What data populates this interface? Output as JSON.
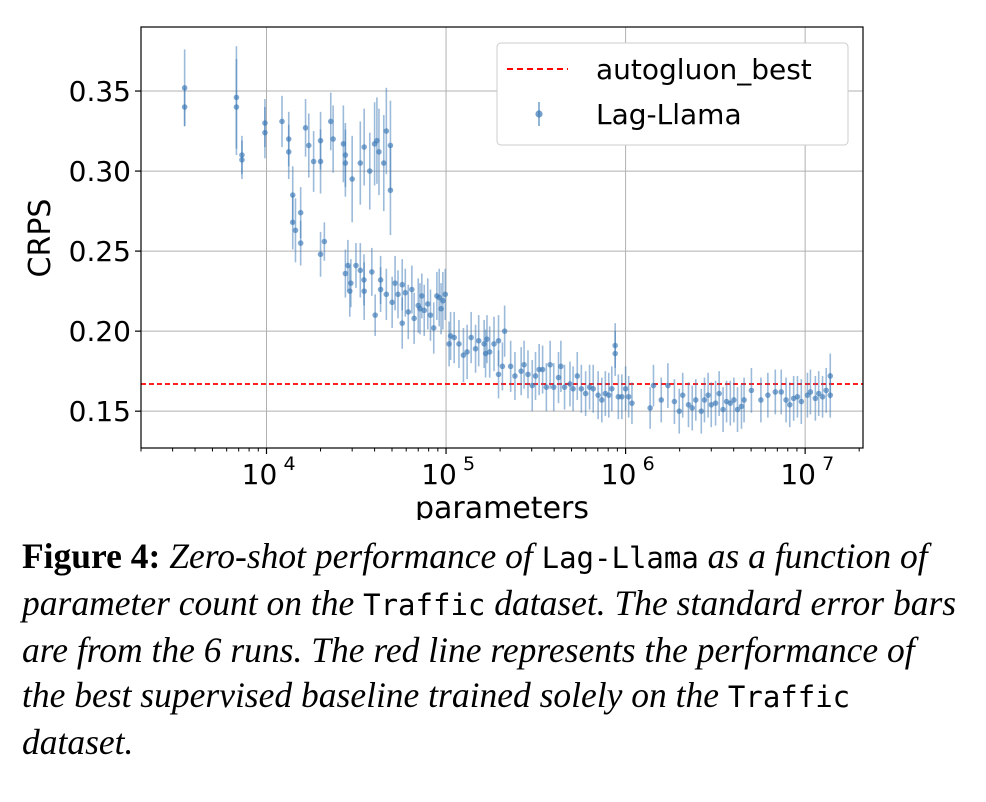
{
  "chart_data": {
    "type": "scatter",
    "xscale": "log",
    "xlim": [
      2000,
      21000000
    ],
    "ylim": [
      0.127,
      0.39
    ],
    "xlabel": "parameters",
    "ylabel": "CRPS",
    "xticks": [
      {
        "value": 10000,
        "label": "10",
        "exp": "4"
      },
      {
        "value": 100000,
        "label": "10",
        "exp": "5"
      },
      {
        "value": 1000000,
        "label": "10",
        "exp": "6"
      },
      {
        "value": 10000000,
        "label": "10",
        "exp": "7"
      }
    ],
    "yticks": [
      {
        "value": 0.15,
        "label": "0.15"
      },
      {
        "value": 0.2,
        "label": "0.20"
      },
      {
        "value": 0.25,
        "label": "0.25"
      },
      {
        "value": 0.3,
        "label": "0.30"
      },
      {
        "value": 0.35,
        "label": "0.35"
      }
    ],
    "grid": true,
    "legend": {
      "position": "top-right",
      "entries": [
        "autogluon_best",
        "Lag-Llama"
      ]
    },
    "colors": {
      "points": "#3a78b5",
      "baseline": "#ff0000"
    },
    "baseline": {
      "name": "autogluon_best",
      "value": 0.167
    },
    "series": [
      {
        "name": "Lag-Llama",
        "points": [
          [
            3500,
            0.352,
            0.024
          ],
          [
            3500,
            0.34,
            0.012
          ],
          [
            6800,
            0.346,
            0.032
          ],
          [
            6800,
            0.34,
            0.03
          ],
          [
            7300,
            0.31,
            0.012
          ],
          [
            7300,
            0.307,
            0.012
          ],
          [
            9800,
            0.33,
            0.015
          ],
          [
            9800,
            0.324,
            0.016
          ],
          [
            12200,
            0.331,
            0.016
          ],
          [
            13300,
            0.32,
            0.017
          ],
          [
            13300,
            0.312,
            0.017
          ],
          [
            14000,
            0.285,
            0.018
          ],
          [
            14000,
            0.268,
            0.017
          ],
          [
            14500,
            0.263,
            0.02
          ],
          [
            15500,
            0.274,
            0.016
          ],
          [
            15500,
            0.255,
            0.014
          ],
          [
            16500,
            0.327,
            0.018
          ],
          [
            17200,
            0.316,
            0.02
          ],
          [
            18300,
            0.306,
            0.019
          ],
          [
            20000,
            0.319,
            0.018
          ],
          [
            20000,
            0.306,
            0.02
          ],
          [
            20000,
            0.248,
            0.014
          ],
          [
            21000,
            0.256,
            0.012
          ],
          [
            22800,
            0.331,
            0.018
          ],
          [
            23500,
            0.32,
            0.021
          ],
          [
            26800,
            0.317,
            0.024
          ],
          [
            27500,
            0.305,
            0.021
          ],
          [
            27500,
            0.31,
            0.02
          ],
          [
            27500,
            0.236,
            0.015
          ],
          [
            28400,
            0.241,
            0.016
          ],
          [
            29100,
            0.225,
            0.016
          ],
          [
            29500,
            0.23,
            0.015
          ],
          [
            30000,
            0.295,
            0.027
          ],
          [
            31500,
            0.241,
            0.014
          ],
          [
            33300,
            0.305,
            0.026
          ],
          [
            33300,
            0.238,
            0.017
          ],
          [
            34900,
            0.232,
            0.016
          ],
          [
            35000,
            0.315,
            0.024
          ],
          [
            35000,
            0.225,
            0.018
          ],
          [
            37600,
            0.3,
            0.024
          ],
          [
            38600,
            0.237,
            0.015
          ],
          [
            40000,
            0.317,
            0.026
          ],
          [
            40300,
            0.21,
            0.013
          ],
          [
            41200,
            0.319,
            0.027
          ],
          [
            42300,
            0.312,
            0.027
          ],
          [
            43200,
            0.232,
            0.015
          ],
          [
            43200,
            0.226,
            0.014
          ],
          [
            45000,
            0.305,
            0.03
          ],
          [
            46500,
            0.325,
            0.027
          ],
          [
            46500,
            0.223,
            0.016
          ],
          [
            49000,
            0.288,
            0.028
          ],
          [
            49000,
            0.316,
            0.028
          ],
          [
            50100,
            0.218,
            0.016
          ],
          [
            52000,
            0.23,
            0.017
          ],
          [
            54000,
            0.223,
            0.015
          ],
          [
            57000,
            0.205,
            0.016
          ],
          [
            57000,
            0.229,
            0.016
          ],
          [
            59300,
            0.224,
            0.015
          ],
          [
            61600,
            0.212,
            0.017
          ],
          [
            64500,
            0.226,
            0.015
          ],
          [
            66400,
            0.208,
            0.016
          ],
          [
            70000,
            0.216,
            0.017
          ],
          [
            71600,
            0.214,
            0.016
          ],
          [
            73300,
            0.222,
            0.014
          ],
          [
            75600,
            0.213,
            0.016
          ],
          [
            79100,
            0.217,
            0.016
          ],
          [
            81900,
            0.21,
            0.016
          ],
          [
            85400,
            0.202,
            0.016
          ],
          [
            88900,
            0.222,
            0.015
          ],
          [
            91600,
            0.221,
            0.018
          ],
          [
            93800,
            0.214,
            0.016
          ],
          [
            96000,
            0.219,
            0.018
          ],
          [
            99000,
            0.223,
            0.016
          ],
          [
            104000,
            0.192,
            0.014
          ],
          [
            106000,
            0.197,
            0.015
          ],
          [
            111000,
            0.196,
            0.016
          ],
          [
            118000,
            0.192,
            0.015
          ],
          [
            125000,
            0.185,
            0.017
          ],
          [
            131000,
            0.187,
            0.017
          ],
          [
            138000,
            0.196,
            0.016
          ],
          [
            146000,
            0.189,
            0.015
          ],
          [
            152000,
            0.194,
            0.016
          ],
          [
            163000,
            0.192,
            0.015
          ],
          [
            166000,
            0.186,
            0.015
          ],
          [
            169000,
            0.195,
            0.015
          ],
          [
            175000,
            0.187,
            0.016
          ],
          [
            185000,
            0.192,
            0.017
          ],
          [
            196000,
            0.194,
            0.016
          ],
          [
            196000,
            0.173,
            0.015
          ],
          [
            206000,
            0.178,
            0.015
          ],
          [
            212000,
            0.2,
            0.016
          ],
          [
            229000,
            0.178,
            0.016
          ],
          [
            242000,
            0.172,
            0.015
          ],
          [
            262000,
            0.175,
            0.015
          ],
          [
            272000,
            0.179,
            0.015
          ],
          [
            286000,
            0.173,
            0.015
          ],
          [
            302000,
            0.166,
            0.016
          ],
          [
            315000,
            0.172,
            0.015
          ],
          [
            330000,
            0.176,
            0.016
          ],
          [
            345000,
            0.176,
            0.015
          ],
          [
            362000,
            0.165,
            0.015
          ],
          [
            380000,
            0.179,
            0.015
          ],
          [
            398000,
            0.165,
            0.015
          ],
          [
            423000,
            0.171,
            0.016
          ],
          [
            436000,
            0.178,
            0.016
          ],
          [
            457000,
            0.165,
            0.014
          ],
          [
            490000,
            0.167,
            0.014
          ],
          [
            510000,
            0.164,
            0.014
          ],
          [
            538000,
            0.172,
            0.015
          ],
          [
            567000,
            0.164,
            0.015
          ],
          [
            599000,
            0.161,
            0.014
          ],
          [
            630000,
            0.165,
            0.014
          ],
          [
            660000,
            0.164,
            0.015
          ],
          [
            703000,
            0.16,
            0.015
          ],
          [
            737000,
            0.157,
            0.014
          ],
          [
            771000,
            0.161,
            0.014
          ],
          [
            806000,
            0.16,
            0.014
          ],
          [
            838000,
            0.164,
            0.014
          ],
          [
            875000,
            0.191,
            0.014
          ],
          [
            875000,
            0.186,
            0.014
          ],
          [
            911000,
            0.159,
            0.014
          ],
          [
            953000,
            0.159,
            0.014
          ],
          [
            1000000,
            0.164,
            0.014
          ],
          [
            1040000,
            0.159,
            0.013
          ],
          [
            1085000,
            0.155,
            0.013
          ],
          [
            1370000,
            0.152,
            0.013
          ],
          [
            1430000,
            0.166,
            0.013
          ],
          [
            1580000,
            0.157,
            0.014
          ],
          [
            1720000,
            0.166,
            0.014
          ],
          [
            1870000,
            0.156,
            0.014
          ],
          [
            1990000,
            0.15,
            0.014
          ],
          [
            2080000,
            0.16,
            0.014
          ],
          [
            2240000,
            0.154,
            0.014
          ],
          [
            2350000,
            0.152,
            0.014
          ],
          [
            2460000,
            0.157,
            0.013
          ],
          [
            2640000,
            0.15,
            0.014
          ],
          [
            2750000,
            0.157,
            0.014
          ],
          [
            2880000,
            0.16,
            0.014
          ],
          [
            3000000,
            0.154,
            0.014
          ],
          [
            3170000,
            0.155,
            0.014
          ],
          [
            3320000,
            0.161,
            0.014
          ],
          [
            3490000,
            0.151,
            0.014
          ],
          [
            3650000,
            0.156,
            0.013
          ],
          [
            3830000,
            0.155,
            0.014
          ],
          [
            4010000,
            0.157,
            0.014
          ],
          [
            4200000,
            0.151,
            0.014
          ],
          [
            4420000,
            0.153,
            0.014
          ],
          [
            4570000,
            0.157,
            0.014
          ],
          [
            5020000,
            0.163,
            0.014
          ],
          [
            5670000,
            0.157,
            0.014
          ],
          [
            6200000,
            0.16,
            0.014
          ],
          [
            6820000,
            0.162,
            0.014
          ],
          [
            7360000,
            0.162,
            0.014
          ],
          [
            7830000,
            0.157,
            0.014
          ],
          [
            8210000,
            0.154,
            0.014
          ],
          [
            8630000,
            0.158,
            0.014
          ],
          [
            9060000,
            0.159,
            0.013
          ],
          [
            9520000,
            0.156,
            0.014
          ],
          [
            10300000,
            0.16,
            0.014
          ],
          [
            10700000,
            0.162,
            0.014
          ],
          [
            11400000,
            0.158,
            0.014
          ],
          [
            11900000,
            0.161,
            0.014
          ],
          [
            12500000,
            0.159,
            0.013
          ],
          [
            13100000,
            0.163,
            0.014
          ],
          [
            13800000,
            0.172,
            0.014
          ],
          [
            13800000,
            0.16,
            0.014
          ]
        ]
      }
    ]
  },
  "caption": {
    "label": "Figure 4:",
    "t1": " Zero-shot performance of ",
    "code1": "Lag-Llama",
    "t2": " as a function of parameter count on the ",
    "code2": "Traffic",
    "t3": " dataset. The standard error bars are from the 6 runs. The red line represents the performance of the best supervised baseline trained solely on the ",
    "code3": "Traffic",
    "t4": " dataset."
  }
}
